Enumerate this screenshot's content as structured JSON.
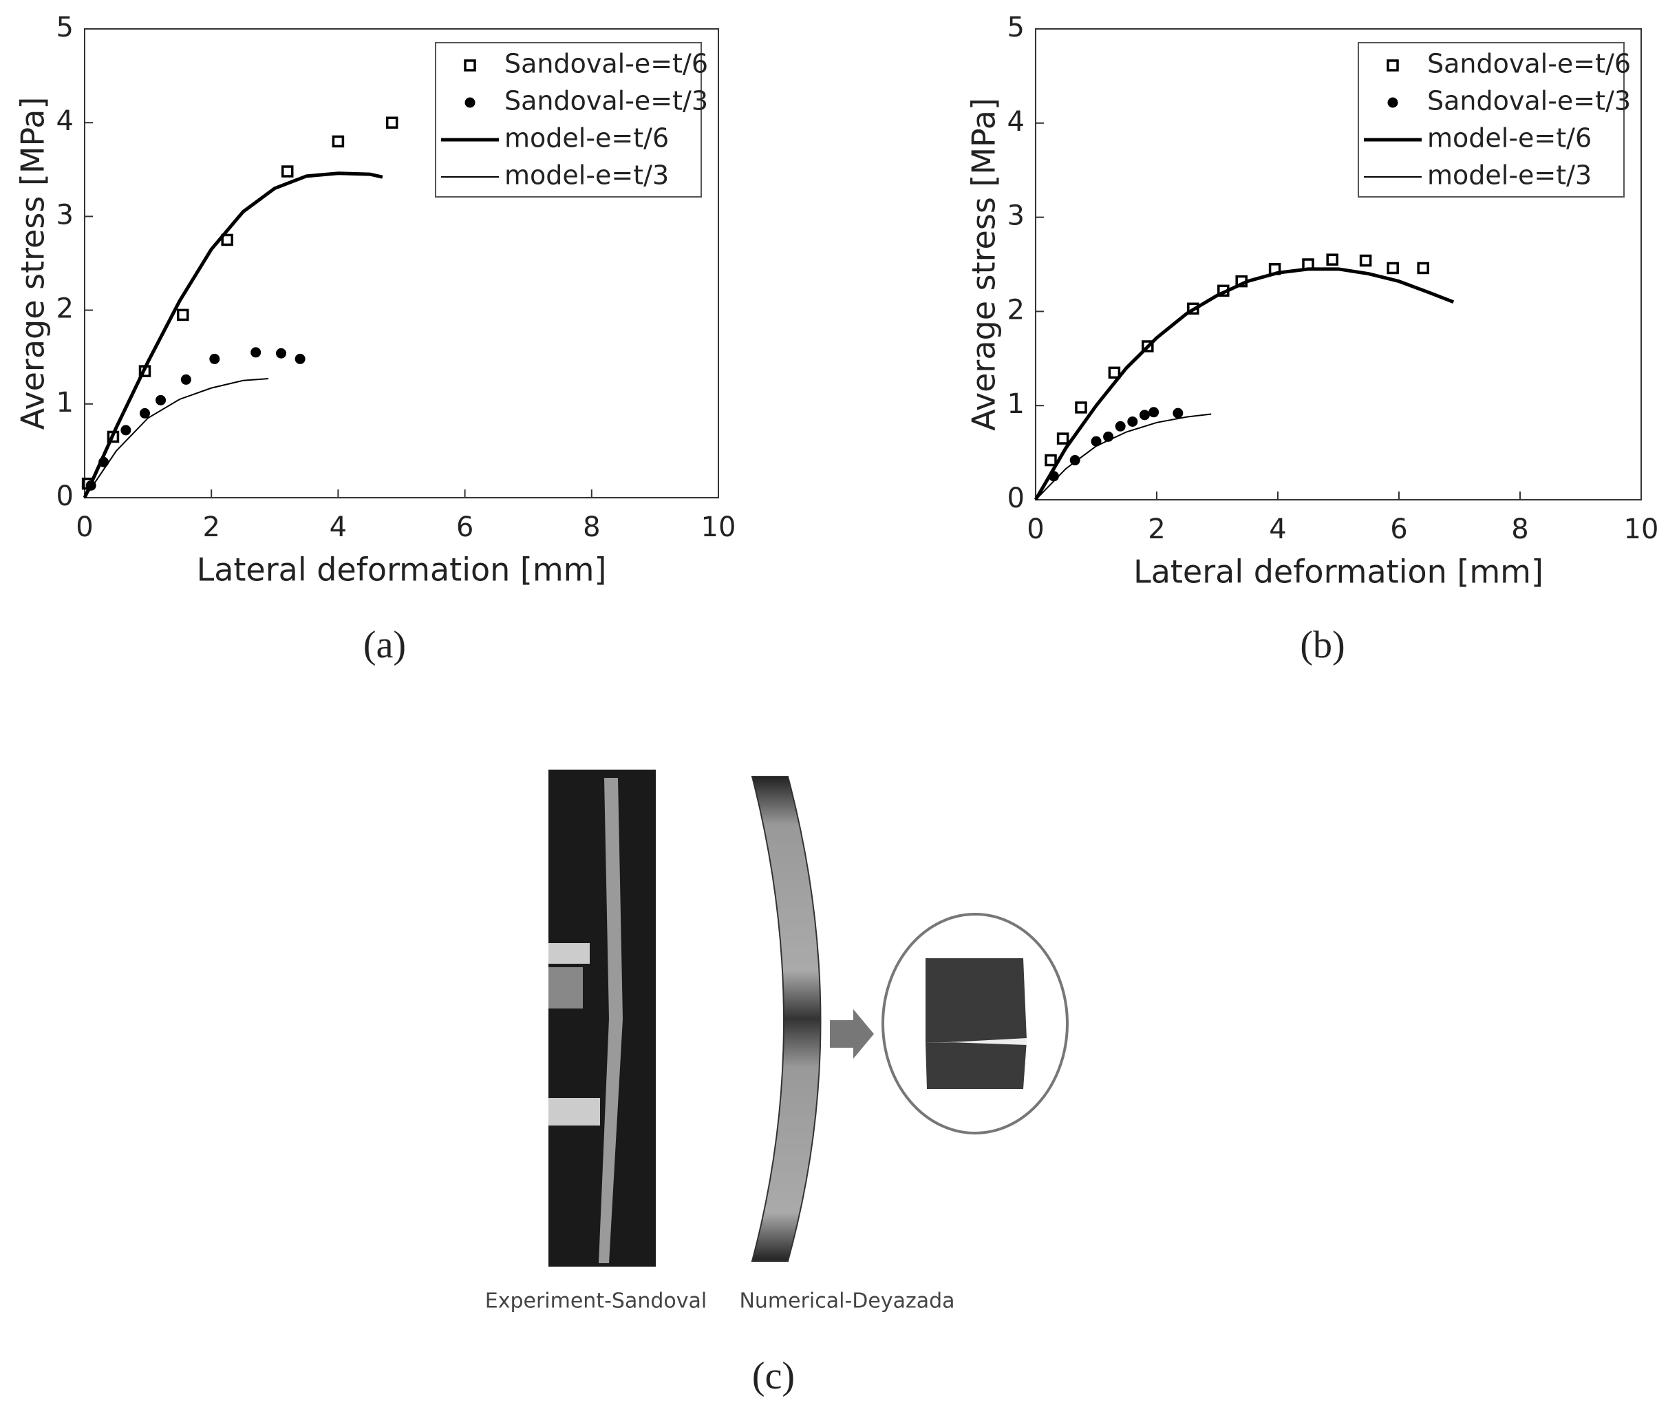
{
  "chart_data": [
    {
      "type": "scatter-line",
      "caption": "(a)",
      "xlabel": "Lateral deformation [mm]",
      "ylabel": "Average stress [MPa]",
      "xlim": [
        0,
        10
      ],
      "ylim": [
        0,
        5
      ],
      "xticks": [
        0,
        2,
        4,
        6,
        8,
        10
      ],
      "yticks": [
        0,
        1,
        2,
        3,
        4,
        5
      ],
      "grid": false,
      "legend": "upper right",
      "series": [
        {
          "name": "Sandoval-e=t/6",
          "color": "#000000",
          "marker": "square",
          "line_width": 0,
          "x": [
            0.05,
            0.45,
            0.95,
            1.55,
            2.25,
            3.2,
            4.0,
            4.85
          ],
          "values": [
            0.15,
            0.65,
            1.35,
            1.95,
            2.75,
            3.48,
            3.8,
            4.0
          ]
        },
        {
          "name": "Sandoval-e=t/3",
          "color": "#000000",
          "marker": "circle",
          "line_width": 0,
          "x": [
            0.1,
            0.3,
            0.65,
            0.95,
            1.2,
            1.6,
            2.05,
            2.7,
            3.1,
            3.4
          ],
          "values": [
            0.13,
            0.38,
            0.72,
            0.9,
            1.04,
            1.26,
            1.48,
            1.55,
            1.54,
            1.48
          ]
        },
        {
          "name": "model-e=t/6",
          "color": "#000000",
          "marker": "none",
          "line_width": 5,
          "x": [
            0,
            0.5,
            1,
            1.5,
            2,
            2.5,
            3,
            3.5,
            4,
            4.5,
            4.7
          ],
          "values": [
            0,
            0.75,
            1.45,
            2.1,
            2.65,
            3.05,
            3.3,
            3.43,
            3.46,
            3.45,
            3.42
          ]
        },
        {
          "name": "model-e=t/3",
          "color": "#000000",
          "marker": "none",
          "line_width": 2,
          "x": [
            0,
            0.5,
            1,
            1.5,
            2,
            2.5,
            2.9
          ],
          "values": [
            0,
            0.5,
            0.85,
            1.05,
            1.17,
            1.25,
            1.27
          ]
        }
      ]
    },
    {
      "type": "scatter-line",
      "caption": "(b)",
      "xlabel": "Lateral deformation [mm]",
      "ylabel": "Average stress [MPa]",
      "xlim": [
        0,
        10
      ],
      "ylim": [
        0,
        5
      ],
      "xticks": [
        0,
        2,
        4,
        6,
        8,
        10
      ],
      "yticks": [
        0,
        1,
        2,
        3,
        4,
        5
      ],
      "grid": false,
      "legend": "upper right",
      "series": [
        {
          "name": "Sandoval-e=t/6",
          "color": "#000000",
          "marker": "square",
          "line_width": 0,
          "x": [
            0.25,
            0.45,
            0.75,
            1.3,
            1.85,
            2.6,
            3.1,
            3.4,
            3.95,
            4.5,
            4.9,
            5.45,
            5.9,
            6.4
          ],
          "values": [
            0.42,
            0.65,
            0.98,
            1.35,
            1.63,
            2.03,
            2.22,
            2.32,
            2.45,
            2.5,
            2.55,
            2.54,
            2.46,
            2.46
          ]
        },
        {
          "name": "Sandoval-e=t/3",
          "color": "#000000",
          "marker": "circle",
          "line_width": 0,
          "x": [
            0.3,
            0.65,
            1.0,
            1.2,
            1.4,
            1.6,
            1.8,
            1.95,
            2.35
          ],
          "values": [
            0.25,
            0.42,
            0.62,
            0.67,
            0.78,
            0.83,
            0.9,
            0.93,
            0.92
          ]
        },
        {
          "name": "model-e=t/6",
          "color": "#000000",
          "marker": "none",
          "line_width": 5,
          "x": [
            0,
            0.5,
            1,
            1.5,
            2,
            2.5,
            3,
            3.5,
            4,
            4.5,
            5,
            5.5,
            6,
            6.5,
            6.9
          ],
          "values": [
            0,
            0.55,
            1.0,
            1.4,
            1.72,
            1.98,
            2.17,
            2.32,
            2.41,
            2.45,
            2.45,
            2.4,
            2.32,
            2.2,
            2.1
          ]
        },
        {
          "name": "model-e=t/3",
          "color": "#000000",
          "marker": "none",
          "line_width": 2,
          "x": [
            0,
            0.5,
            1,
            1.5,
            2,
            2.5,
            2.9
          ],
          "values": [
            0,
            0.33,
            0.57,
            0.72,
            0.82,
            0.88,
            0.91
          ]
        }
      ]
    }
  ],
  "figure_c": {
    "caption": "(c)",
    "left_label": "Experiment-Sandoval",
    "right_label": "Numerical-Deyazada"
  }
}
